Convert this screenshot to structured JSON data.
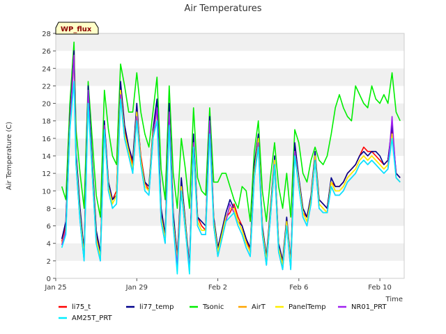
{
  "chart_data": {
    "type": "line",
    "title": "Air Temperatures",
    "xlabel": "Time",
    "ylabel": "Air Temperature (C)",
    "badge": "WP_flux",
    "xlim": [
      0,
      17.2
    ],
    "ylim": [
      0,
      28
    ],
    "yticks": [
      0,
      2,
      4,
      6,
      8,
      10,
      12,
      14,
      16,
      18,
      20,
      22,
      24,
      26,
      28
    ],
    "xticks": [
      {
        "value": 0,
        "label": "Jan 25"
      },
      {
        "value": 4,
        "label": "Jan 29"
      },
      {
        "value": 8,
        "label": "Feb 2"
      },
      {
        "value": 12,
        "label": "Feb 6"
      },
      {
        "value": 16,
        "label": "Feb 10"
      }
    ],
    "x": [
      0.3,
      0.5,
      0.7,
      0.9,
      1.0,
      1.2,
      1.4,
      1.6,
      1.8,
      2.0,
      2.2,
      2.4,
      2.6,
      2.8,
      3.0,
      3.2,
      3.4,
      3.6,
      3.8,
      4.0,
      4.2,
      4.4,
      4.6,
      4.8,
      5.0,
      5.2,
      5.4,
      5.6,
      5.8,
      6.0,
      6.2,
      6.4,
      6.6,
      6.8,
      7.0,
      7.2,
      7.4,
      7.6,
      7.8,
      8.0,
      8.2,
      8.4,
      8.6,
      8.8,
      9.0,
      9.2,
      9.4,
      9.6,
      9.8,
      10.0,
      10.2,
      10.4,
      10.6,
      10.8,
      11.0,
      11.2,
      11.4,
      11.6,
      11.8,
      12.0,
      12.2,
      12.4,
      12.6,
      12.8,
      13.0,
      13.2,
      13.4,
      13.6,
      13.8,
      14.0,
      14.2,
      14.4,
      14.6,
      14.8,
      15.0,
      15.2,
      15.4,
      15.6,
      15.8,
      16.0,
      16.2,
      16.4,
      16.6,
      16.8,
      17.0
    ],
    "series": [
      {
        "name": "li75_t",
        "color": "#ff0000",
        "values": [
          4.2,
          6.0,
          18.0,
          26.0,
          14.0,
          7.5,
          3.0,
          21.5,
          13.0,
          5.0,
          3.0,
          17.5,
          11.0,
          9.0,
          10.0,
          22.0,
          17.0,
          15.0,
          13.0,
          19.0,
          14.0,
          11.0,
          10.0,
          17.0,
          19.5,
          7.5,
          5.0,
          19.0,
          7.0,
          2.5,
          11.0,
          6.0,
          1.5,
          16.0,
          7.0,
          6.0,
          5.5,
          17.5,
          6.5,
          3.0,
          5.0,
          7.0,
          7.5,
          8.5,
          7.0,
          6.0,
          4.5,
          3.0,
          12.0,
          16.0,
          5.5,
          2.0,
          8.0,
          13.5,
          3.5,
          2.0,
          6.5,
          1.5,
          15.0,
          11.0,
          7.5,
          7.0,
          9.0,
          14.0,
          9.0,
          8.5,
          8.0,
          11.0,
          10.5,
          10.5,
          11.0,
          12.0,
          12.5,
          13.0,
          14.0,
          15.0,
          14.5,
          14.5,
          14.0,
          13.5,
          13.0,
          13.5,
          17.0,
          12.0,
          11.5
        ]
      },
      {
        "name": "li77_temp",
        "color": "#00008b",
        "values": [
          4.5,
          6.5,
          18.5,
          26.0,
          14.5,
          8.0,
          3.0,
          22.0,
          13.5,
          5.5,
          3.0,
          18.0,
          11.0,
          9.0,
          9.5,
          22.5,
          17.5,
          15.0,
          13.5,
          20.0,
          13.5,
          11.0,
          10.5,
          17.0,
          20.5,
          8.0,
          5.0,
          20.0,
          7.5,
          2.5,
          11.5,
          6.5,
          1.5,
          16.5,
          7.0,
          6.5,
          6.0,
          18.5,
          7.0,
          3.5,
          5.5,
          7.5,
          9.0,
          8.0,
          6.5,
          6.0,
          4.5,
          3.5,
          13.0,
          16.5,
          6.0,
          2.5,
          8.0,
          14.0,
          4.0,
          2.0,
          7.0,
          2.0,
          15.5,
          11.5,
          8.0,
          7.0,
          9.5,
          14.5,
          9.0,
          8.5,
          8.0,
          11.5,
          10.5,
          10.5,
          11.0,
          12.0,
          12.5,
          13.0,
          14.0,
          14.5,
          14.0,
          14.5,
          14.5,
          14.0,
          13.0,
          13.5,
          17.5,
          12.0,
          11.5
        ]
      },
      {
        "name": "Tsonic",
        "color": "#00ee00",
        "values": [
          10.5,
          9.0,
          20.0,
          27.0,
          17.0,
          12.0,
          8.0,
          22.5,
          16.0,
          9.5,
          7.0,
          21.5,
          17.0,
          14.0,
          13.0,
          24.5,
          22.0,
          19.0,
          19.0,
          23.5,
          19.0,
          16.5,
          15.0,
          19.0,
          23.0,
          12.5,
          9.0,
          22.0,
          12.0,
          8.0,
          16.0,
          12.5,
          8.0,
          19.5,
          11.5,
          10.0,
          9.5,
          19.5,
          11.0,
          11.0,
          12.0,
          12.0,
          10.5,
          9.0,
          8.0,
          10.5,
          10.0,
          6.5,
          14.5,
          18.0,
          10.0,
          6.5,
          11.5,
          15.5,
          10.5,
          8.0,
          12.0,
          7.0,
          17.0,
          15.5,
          12.0,
          11.0,
          13.5,
          15.0,
          13.5,
          13.0,
          14.0,
          16.5,
          19.5,
          21.0,
          19.5,
          18.5,
          18.0,
          22.0,
          21.0,
          20.0,
          19.5,
          22.0,
          20.5,
          20.0,
          21.0,
          20.0,
          23.5,
          19.0,
          18.0
        ]
      },
      {
        "name": "AirT",
        "color": "#ffa500",
        "values": [
          4.0,
          5.5,
          17.5,
          25.5,
          13.5,
          7.0,
          2.5,
          21.0,
          12.5,
          4.5,
          2.5,
          17.5,
          10.5,
          8.5,
          9.5,
          21.5,
          16.5,
          14.5,
          12.5,
          19.0,
          13.5,
          10.5,
          10.0,
          16.5,
          19.0,
          7.0,
          4.5,
          19.0,
          6.5,
          2.0,
          10.5,
          6.0,
          1.0,
          15.5,
          6.5,
          5.5,
          5.5,
          17.5,
          6.5,
          3.0,
          5.0,
          7.0,
          8.0,
          8.0,
          6.5,
          5.5,
          4.0,
          3.0,
          12.0,
          16.0,
          5.5,
          2.0,
          7.5,
          13.5,
          3.5,
          1.5,
          6.5,
          1.5,
          14.5,
          11.0,
          7.5,
          6.5,
          9.0,
          14.0,
          8.5,
          8.0,
          7.5,
          11.0,
          10.0,
          10.0,
          10.5,
          11.5,
          12.0,
          12.5,
          13.5,
          14.0,
          13.5,
          14.0,
          13.5,
          13.0,
          12.5,
          13.0,
          16.5,
          11.5,
          11.0
        ]
      },
      {
        "name": "PanelTemp",
        "color": "#ffee00",
        "values": [
          4.0,
          5.5,
          17.5,
          25.0,
          13.5,
          7.0,
          2.5,
          21.0,
          12.5,
          4.5,
          2.5,
          17.0,
          10.5,
          8.5,
          9.5,
          21.5,
          16.5,
          14.5,
          12.5,
          19.0,
          13.5,
          10.5,
          10.0,
          16.5,
          19.0,
          7.0,
          4.5,
          18.5,
          6.5,
          2.0,
          10.5,
          6.0,
          1.0,
          15.5,
          6.5,
          5.5,
          5.5,
          17.5,
          6.5,
          3.0,
          5.0,
          7.0,
          8.0,
          8.0,
          6.5,
          5.5,
          4.0,
          3.0,
          12.0,
          16.0,
          5.5,
          2.0,
          7.5,
          13.5,
          3.5,
          1.5,
          6.5,
          1.5,
          14.5,
          11.0,
          7.5,
          6.5,
          9.0,
          14.0,
          8.5,
          8.0,
          7.5,
          11.0,
          10.0,
          10.0,
          10.5,
          11.5,
          12.0,
          12.5,
          13.5,
          14.0,
          13.5,
          14.0,
          13.5,
          13.0,
          12.5,
          13.0,
          16.5,
          11.5,
          11.0
        ]
      },
      {
        "name": "NR01_PRT",
        "color": "#a020f0",
        "values": [
          3.8,
          5.5,
          17.0,
          25.5,
          13.0,
          6.5,
          2.0,
          21.5,
          12.0,
          4.0,
          2.0,
          17.5,
          10.0,
          8.0,
          8.5,
          21.0,
          16.0,
          14.0,
          12.0,
          18.5,
          13.0,
          10.0,
          9.5,
          16.0,
          19.5,
          6.5,
          4.0,
          19.0,
          6.0,
          1.5,
          10.0,
          5.5,
          1.0,
          15.5,
          6.0,
          5.0,
          5.0,
          18.0,
          6.0,
          2.5,
          4.5,
          6.5,
          8.5,
          7.5,
          6.0,
          5.0,
          3.5,
          2.5,
          11.5,
          15.5,
          5.0,
          1.5,
          7.0,
          13.0,
          3.0,
          1.0,
          6.0,
          1.0,
          14.5,
          10.5,
          7.0,
          6.0,
          8.5,
          13.5,
          8.0,
          7.5,
          7.5,
          10.5,
          9.5,
          9.5,
          10.0,
          11.0,
          11.5,
          12.0,
          13.0,
          13.5,
          13.0,
          13.5,
          13.0,
          12.5,
          12.0,
          12.5,
          18.5,
          11.5,
          11.0
        ]
      },
      {
        "name": "AM25T_PRT",
        "color": "#00eeff",
        "values": [
          3.5,
          5.0,
          17.0,
          22.5,
          13.0,
          6.5,
          2.0,
          20.0,
          12.0,
          4.0,
          2.0,
          17.0,
          10.0,
          8.0,
          8.5,
          20.5,
          16.0,
          14.0,
          12.0,
          18.0,
          13.0,
          10.0,
          9.5,
          16.0,
          18.0,
          6.5,
          4.0,
          17.5,
          6.0,
          0.5,
          10.0,
          5.5,
          0.5,
          15.0,
          6.0,
          5.0,
          5.0,
          16.5,
          6.0,
          2.5,
          4.5,
          6.5,
          7.0,
          7.5,
          6.0,
          5.0,
          3.5,
          2.5,
          11.5,
          15.0,
          5.0,
          1.5,
          7.0,
          13.0,
          3.0,
          1.0,
          6.0,
          1.0,
          14.0,
          10.5,
          7.0,
          6.0,
          8.5,
          13.5,
          8.0,
          7.5,
          7.5,
          10.5,
          9.5,
          9.5,
          10.0,
          11.0,
          11.5,
          12.0,
          13.0,
          13.5,
          13.0,
          13.5,
          13.0,
          12.5,
          12.0,
          12.5,
          16.0,
          11.5,
          11.0
        ]
      }
    ],
    "legend": {
      "row1": [
        "li75_t",
        "li77_temp",
        "Tsonic",
        "AirT",
        "PanelTemp",
        "NR01_PRT"
      ],
      "row2": [
        "AM25T_PRT"
      ]
    }
  }
}
